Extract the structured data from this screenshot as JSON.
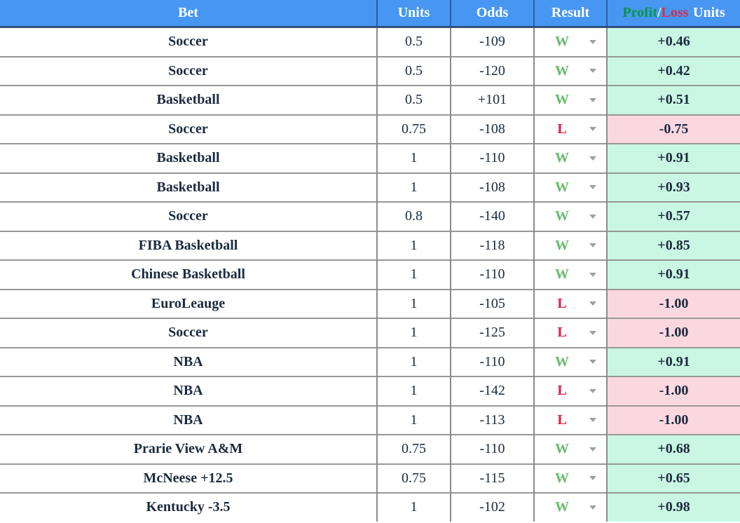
{
  "table": {
    "headers": {
      "bet": "Bet",
      "units": "Units",
      "odds": "Odds",
      "result": "Result",
      "profit_word": "Profit",
      "slash_word": "/",
      "loss_word": "Loss",
      "units_word": "Units"
    },
    "rows": [
      {
        "bet": "Soccer",
        "units": "0.5",
        "odds": "-109",
        "result": "W",
        "profit_loss": "+0.46"
      },
      {
        "bet": "Soccer",
        "units": "0.5",
        "odds": "-120",
        "result": "W",
        "profit_loss": "+0.42"
      },
      {
        "bet": "Basketball",
        "units": "0.5",
        "odds": "+101",
        "result": "W",
        "profit_loss": "+0.51"
      },
      {
        "bet": "Soccer",
        "units": "0.75",
        "odds": "-108",
        "result": "L",
        "profit_loss": "-0.75"
      },
      {
        "bet": "Basketball",
        "units": "1",
        "odds": "-110",
        "result": "W",
        "profit_loss": "+0.91"
      },
      {
        "bet": "Basketball",
        "units": "1",
        "odds": "-108",
        "result": "W",
        "profit_loss": "+0.93"
      },
      {
        "bet": "Soccer",
        "units": "0.8",
        "odds": "-140",
        "result": "W",
        "profit_loss": "+0.57"
      },
      {
        "bet": "FIBA Basketball",
        "units": "1",
        "odds": "-118",
        "result": "W",
        "profit_loss": "+0.85"
      },
      {
        "bet": "Chinese Basketball",
        "units": "1",
        "odds": "-110",
        "result": "W",
        "profit_loss": "+0.91"
      },
      {
        "bet": "EuroLeauge",
        "units": "1",
        "odds": "-105",
        "result": "L",
        "profit_loss": "-1.00"
      },
      {
        "bet": "Soccer",
        "units": "1",
        "odds": "-125",
        "result": "L",
        "profit_loss": "-1.00"
      },
      {
        "bet": "NBA",
        "units": "1",
        "odds": "-110",
        "result": "W",
        "profit_loss": "+0.91"
      },
      {
        "bet": "NBA",
        "units": "1",
        "odds": "-142",
        "result": "L",
        "profit_loss": "-1.00"
      },
      {
        "bet": "NBA",
        "units": "1",
        "odds": "-113",
        "result": "L",
        "profit_loss": "-1.00"
      },
      {
        "bet": "Prarie View A&M",
        "units": "0.75",
        "odds": "-110",
        "result": "W",
        "profit_loss": "+0.68"
      },
      {
        "bet": "McNeese +12.5",
        "units": "0.75",
        "odds": "-115",
        "result": "W",
        "profit_loss": "+0.65"
      },
      {
        "bet": "Kentucky -3.5",
        "units": "1",
        "odds": "-102",
        "result": "W",
        "profit_loss": "+0.98"
      }
    ]
  },
  "icons": {
    "dropdown_caret": "caret-down-icon"
  },
  "colors": {
    "header_bg": "#4797f2",
    "header_text": "#ffffff",
    "profit_word_green": "#0a9448",
    "loss_word_red": "#d23150",
    "body_text_navy": "#1b2a3e",
    "win_letter_green": "#69bb6d",
    "loss_letter_red": "#e11d3d",
    "win_cell_bg": "#c9f7e3",
    "loss_cell_bg": "#fbd8e0",
    "row_border_gray": "#979797"
  }
}
